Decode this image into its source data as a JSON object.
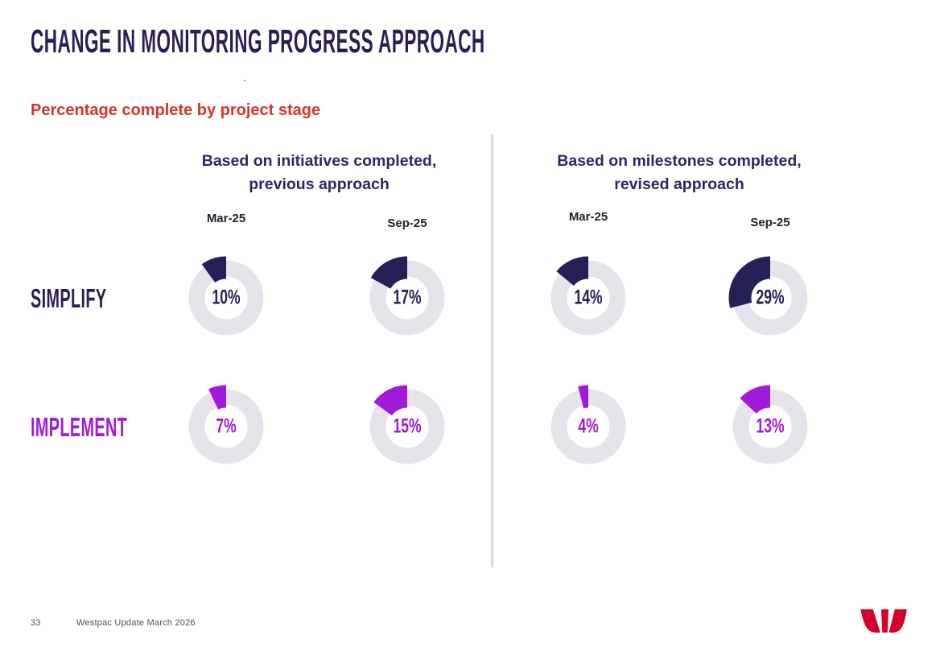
{
  "page": {
    "title": "CHANGE IN MONITORING PROGRESS APPROACH",
    "stray_mark": ".",
    "subtitle": "Percentage complete by project stage",
    "footer": {
      "page_number": "33",
      "text": "Westpac Update March 2026"
    },
    "logo": "westpac-w-logo"
  },
  "colors": {
    "navy": "#252157",
    "purple": "#A119D9",
    "subtitle_red": "#D6352C",
    "logo_red": "#D5002B",
    "donut_track": "#E5E4EA",
    "divider": "#D9D9DE",
    "group_header_text": "#2B2766",
    "column_label_text": "#232330",
    "footer_text": "#4E4E50"
  },
  "chart_data": {
    "type": "donut-grid",
    "unit": "%",
    "value_range": [
      0,
      100
    ],
    "track_color": "#E5E4EA",
    "wedge_direction": "counterclockwise-from-top",
    "row_labels": [
      {
        "label": "SIMPLIFY",
        "color": "#252157"
      },
      {
        "label": "IMPLEMENT",
        "color": "#A119D9"
      }
    ],
    "groups": [
      {
        "title_line1": "Based on initiatives completed,",
        "title_line2": "previous approach",
        "columns": [
          "Mar-25",
          "Sep-25"
        ],
        "series": [
          {
            "name": "SIMPLIFY",
            "color": "#252157",
            "values": [
              10,
              17
            ]
          },
          {
            "name": "IMPLEMENT",
            "color": "#A119D9",
            "values": [
              7,
              15
            ]
          }
        ]
      },
      {
        "title_line1": "Based on milestones completed,",
        "title_line2": "revised approach",
        "columns": [
          "Mar-25",
          "Sep-25"
        ],
        "series": [
          {
            "name": "SIMPLIFY",
            "color": "#252157",
            "values": [
              14,
              29
            ]
          },
          {
            "name": "IMPLEMENT",
            "color": "#A119D9",
            "values": [
              4,
              13
            ]
          }
        ]
      }
    ]
  }
}
